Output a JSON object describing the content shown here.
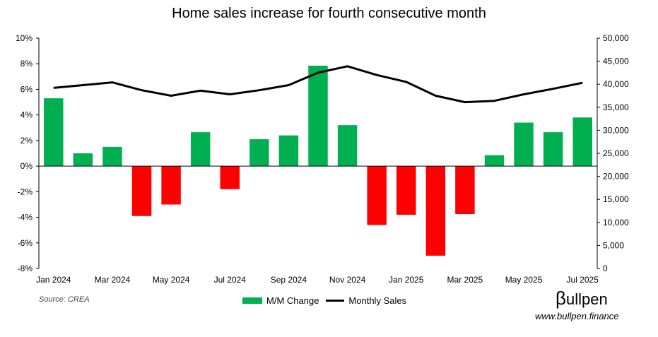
{
  "chart_data": {
    "type": "bar",
    "title": "Home sales increase for fourth consecutive month",
    "categories": [
      "Jan 2024",
      "Feb 2024",
      "Mar 2024",
      "Apr 2024",
      "May 2024",
      "Jun 2024",
      "Jul 2024",
      "Aug 2024",
      "Sep 2024",
      "Oct 2024",
      "Nov 2024",
      "Dec 2024",
      "Jan 2025",
      "Feb 2025",
      "Mar 2025",
      "Apr 2025",
      "May 2025",
      "Jun 2025",
      "Jul 2025"
    ],
    "x_tick_labels": [
      "Jan 2024",
      "Mar 2024",
      "May 2024",
      "Jul 2024",
      "Sep 2024",
      "Nov 2024",
      "Jan 2025",
      "Mar 2025",
      "May 2025",
      "Jul 2025"
    ],
    "series": [
      {
        "name": "M/M Change",
        "type": "bar",
        "axis": "left",
        "values": [
          5.3,
          1.0,
          1.5,
          -3.9,
          -3.0,
          2.65,
          -1.8,
          2.1,
          2.4,
          7.85,
          3.2,
          -4.6,
          -3.8,
          -7.0,
          -3.75,
          0.85,
          3.4,
          2.65,
          3.8
        ]
      },
      {
        "name": "Monthly Sales",
        "type": "line",
        "axis": "right",
        "values": [
          39200,
          39800,
          40400,
          38700,
          37500,
          38600,
          37800,
          38700,
          39800,
          42500,
          43900,
          42000,
          40500,
          37500,
          36100,
          36400,
          37800,
          39000,
          40300
        ]
      }
    ],
    "y_left": {
      "min": -8,
      "max": 10,
      "step": 2,
      "suffix": "%"
    },
    "y_right": {
      "min": 0,
      "max": 50000,
      "step": 5000
    },
    "colors": {
      "positive": "#00b050",
      "negative": "#ff0000",
      "line": "#000000"
    },
    "legend_position": "bottom"
  },
  "legend": {
    "bar_label": "M/M Change",
    "line_label": "Monthly Sales"
  },
  "footer": {
    "source": "Source: CREA",
    "brand_beta": "β",
    "brand_name": "ullpen",
    "site": "www.bullpen.finance"
  }
}
